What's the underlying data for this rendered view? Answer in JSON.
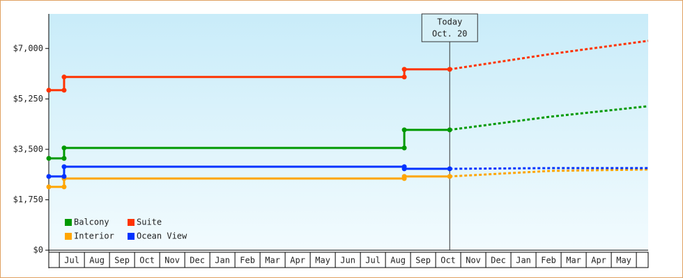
{
  "chart_data": {
    "type": "line",
    "ylim": [
      0,
      8200
    ],
    "yticks": [
      {
        "value": 0,
        "label": "$0"
      },
      {
        "value": 1750,
        "label": "$1,750"
      },
      {
        "value": 3500,
        "label": "$3,500"
      },
      {
        "value": 5250,
        "label": "$5,250"
      },
      {
        "value": 7000,
        "label": "$7,000"
      }
    ],
    "xlim": [
      -0.42,
      23.47
    ],
    "xticks": [
      {
        "value": 0.5,
        "label": "Jul"
      },
      {
        "value": 1.5,
        "label": "Aug"
      },
      {
        "value": 2.5,
        "label": "Sep"
      },
      {
        "value": 3.5,
        "label": "Oct"
      },
      {
        "value": 4.5,
        "label": "Nov"
      },
      {
        "value": 5.5,
        "label": "Dec"
      },
      {
        "value": 6.5,
        "label": "Jan"
      },
      {
        "value": 7.5,
        "label": "Feb"
      },
      {
        "value": 8.5,
        "label": "Mar"
      },
      {
        "value": 9.5,
        "label": "Apr"
      },
      {
        "value": 10.5,
        "label": "May"
      },
      {
        "value": 11.5,
        "label": "Jun"
      },
      {
        "value": 12.5,
        "label": "Jul"
      },
      {
        "value": 13.5,
        "label": "Aug"
      },
      {
        "value": 14.5,
        "label": "Sep"
      },
      {
        "value": 15.5,
        "label": "Oct"
      },
      {
        "value": 16.5,
        "label": "Nov"
      },
      {
        "value": 17.5,
        "label": "Dec"
      },
      {
        "value": 18.5,
        "label": "Jan"
      },
      {
        "value": 19.5,
        "label": "Feb"
      },
      {
        "value": 20.5,
        "label": "Mar"
      },
      {
        "value": 21.5,
        "label": "Apr"
      },
      {
        "value": 22.5,
        "label": "May"
      }
    ],
    "today": {
      "x": 15.56,
      "label": "Today",
      "date": "Oct. 20"
    },
    "series": [
      {
        "name": "Balcony",
        "color": "#009900",
        "x": [
          -0.42,
          0.19,
          0.19,
          13.75,
          13.75,
          15.56
        ],
        "values": [
          3186,
          3186,
          3548,
          3548,
          4176,
          4176
        ],
        "forecast_x": [
          15.56,
          19.58,
          23.47
        ],
        "forecast_values": [
          4176,
          4634,
          4997
        ]
      },
      {
        "name": "Suite",
        "color": "#ff3300",
        "x": [
          -0.42,
          0.19,
          0.19,
          13.75,
          13.75,
          15.56
        ],
        "values": [
          5552,
          5552,
          6010,
          6010,
          6276,
          6276
        ],
        "forecast_x": [
          15.56,
          19.58,
          23.47
        ],
        "forecast_values": [
          6276,
          6807,
          7266
        ]
      },
      {
        "name": "Interior",
        "color": "#ffa500",
        "x": [
          -0.42,
          0.19,
          0.19,
          13.75,
          13.75,
          15.56
        ],
        "values": [
          2197,
          2197,
          2486,
          2486,
          2559,
          2559
        ],
        "forecast_x": [
          15.56,
          19.58,
          23.47
        ],
        "forecast_values": [
          2559,
          2752,
          2800
        ]
      },
      {
        "name": "Ocean View",
        "color": "#0033ff",
        "x": [
          -0.42,
          0.19,
          0.19,
          13.75,
          13.75,
          15.56
        ],
        "values": [
          2559,
          2559,
          2897,
          2897,
          2824,
          2824
        ],
        "forecast_x": [
          15.56,
          19.58,
          23.47
        ],
        "forecast_values": [
          2824,
          2848,
          2848
        ]
      }
    ]
  }
}
